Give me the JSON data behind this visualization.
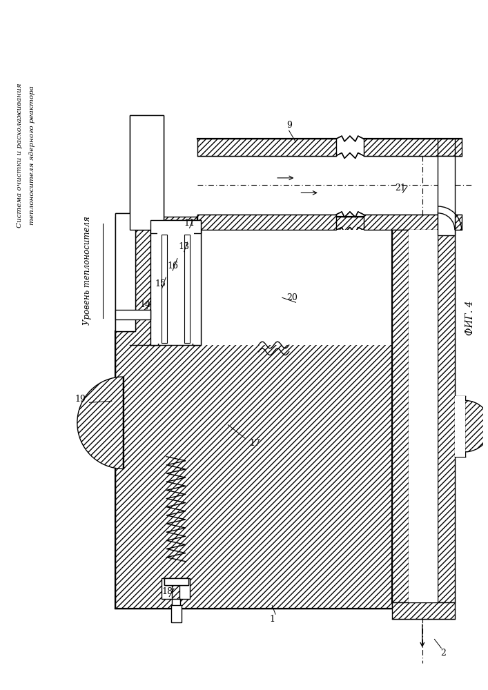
{
  "title_line1": "Система очистки и расхолаживания",
  "title_line2": "теплоносителя ядерного реактора",
  "fig_label": "ФИГ. 4",
  "level_label": "Уровень теплоносителя",
  "bg_color": "#ffffff"
}
